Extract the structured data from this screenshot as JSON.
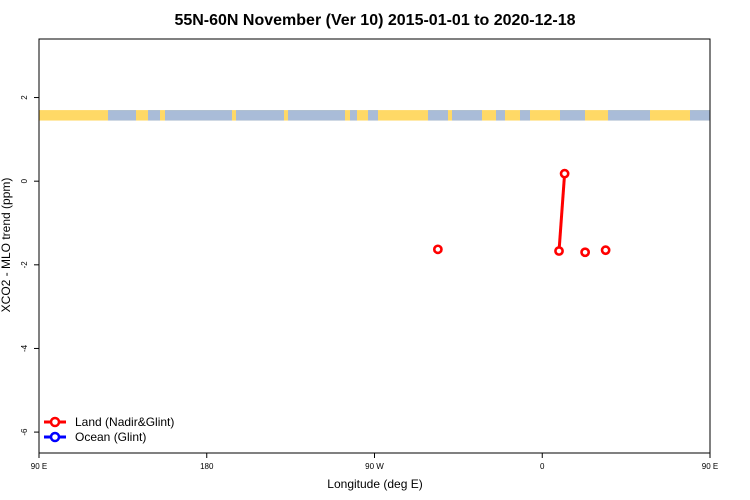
{
  "chart_data": {
    "type": "scatter",
    "title": "55N-60N November (Ver 10)   2015-01-01 to 2020-12-18",
    "xlabel": "Longitude (deg E)",
    "ylabel": "XCO2 - MLO trend (ppm)",
    "xlim": [
      90,
      450
    ],
    "ylim": [
      -6.5,
      3.4
    ],
    "x_ticks": [
      {
        "value": 90,
        "label": "90 E"
      },
      {
        "value": 180,
        "label": "180"
      },
      {
        "value": 270,
        "label": "90 W"
      },
      {
        "value": 360,
        "label": "0"
      },
      {
        "value": 450,
        "label": "90 E"
      },
      {
        "value": 540,
        "label": "180"
      }
    ],
    "y_ticks": [
      {
        "value": 2,
        "label": "2"
      },
      {
        "value": 0,
        "label": "0"
      },
      {
        "value": -2,
        "label": "-2"
      },
      {
        "value": -4,
        "label": "-4"
      },
      {
        "value": -6,
        "label": "-6"
      }
    ],
    "grid": false,
    "legend_position": "bottom-left",
    "map_strip": {
      "y_range": [
        1.45,
        1.7
      ],
      "land_color": "#FFD966",
      "ocean_color": "#A9BCD8"
    },
    "series": [
      {
        "name": "Land (Nadir&Glint)",
        "color": "#FF0000",
        "points": [
          {
            "x": 304,
            "y": -1.63
          },
          {
            "x": 369,
            "y": -1.67
          },
          {
            "x": 372,
            "y": 0.18
          },
          {
            "x": 383,
            "y": -1.7
          },
          {
            "x": 394,
            "y": -1.65
          }
        ],
        "line_segments": [
          [
            {
              "x": 369,
              "y": -1.67
            },
            {
              "x": 372,
              "y": 0.18
            }
          ]
        ]
      },
      {
        "name": "Ocean (Glint)",
        "color": "#0000FF",
        "points": []
      }
    ]
  }
}
